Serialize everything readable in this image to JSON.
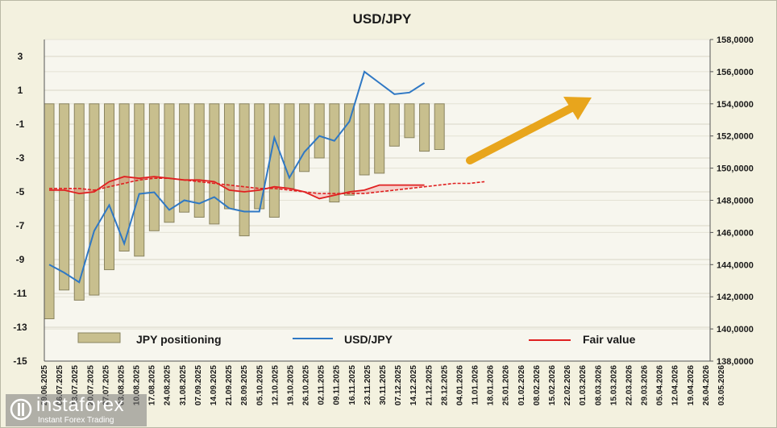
{
  "chart_data": {
    "type": "bar+line",
    "title": "USD/JPY",
    "left_axis": {
      "ticks": [
        3,
        1,
        -1,
        -3,
        -5,
        -7,
        -9,
        -11,
        -13,
        -15
      ],
      "range": [
        -15,
        4
      ]
    },
    "right_axis": {
      "ticks": [
        "158,0000",
        "156,0000",
        "154,0000",
        "152,0000",
        "150,0000",
        "148,0000",
        "146,0000",
        "144,0000",
        "142,0000",
        "140,0000",
        "138,0000"
      ],
      "range": [
        138,
        158
      ]
    },
    "x_labels": [
      "29.06.2025",
      "06.07.2025",
      "13.07.2025",
      "20.07.2025",
      "27.07.2025",
      "03.08.2025",
      "10.08.2025",
      "17.08.2025",
      "24.08.2025",
      "31.08.2025",
      "07.09.2025",
      "14.09.2025",
      "21.09.2025",
      "28.09.2025",
      "05.10.2025",
      "12.10.2025",
      "19.10.2025",
      "26.10.2025",
      "02.11.2025",
      "09.11.2025",
      "16.11.2025",
      "23.11.2025",
      "30.11.2025",
      "07.12.2025",
      "14.12.2025",
      "21.12.2025",
      "28.12.2025",
      "04.01.2026",
      "11.01.2026",
      "18.01.2026",
      "25.01.2026",
      "01.02.2026",
      "08.02.2026",
      "15.02.2026",
      "22.02.2026",
      "01.03.2026",
      "08.03.2026",
      "15.03.2026",
      "22.03.2026",
      "29.03.2026",
      "05.04.2026",
      "12.04.2026",
      "19.04.2026",
      "26.04.2026",
      "03.05.2026"
    ],
    "series": [
      {
        "name": "JPY positioning",
        "kind": "bar",
        "axis": "left",
        "color": "#c8bf8e",
        "values": [
          -12.5,
          -10.8,
          -11.4,
          -11.1,
          -9.6,
          -8.5,
          -8.8,
          -7.3,
          -6.8,
          -6.2,
          -6.5,
          -6.9,
          -6.0,
          -7.6,
          -6.0,
          -6.5,
          -4.8,
          -3.8,
          -3.0,
          -5.6,
          -5.2,
          -4.0,
          -3.9,
          -2.3,
          -1.8,
          -2.6,
          -2.5
        ]
      },
      {
        "name": "USD/JPY",
        "kind": "line",
        "axis": "right",
        "color": "#2f78c4",
        "values": [
          144.0,
          143.5,
          142.9,
          146.1,
          147.7,
          145.3,
          148.4,
          148.5,
          147.4,
          148.0,
          147.8,
          148.2,
          147.5,
          147.3,
          147.3,
          151.9,
          149.4,
          151.0,
          152.0,
          151.7,
          152.9,
          156.0,
          155.3,
          154.6,
          154.7,
          155.3
        ]
      },
      {
        "name": "Fair value",
        "kind": "line",
        "axis": "left",
        "color": "#e02020",
        "values": [
          -4.9,
          -4.9,
          -5.1,
          -5.0,
          -4.4,
          -4.1,
          -4.2,
          -4.1,
          -4.2,
          -4.3,
          -4.3,
          -4.4,
          -4.9,
          -5.0,
          -4.9,
          -4.7,
          -4.8,
          -5.0,
          -5.4,
          -5.2,
          -5.0,
          -4.9,
          -4.6,
          -4.6,
          -4.6,
          -4.6
        ]
      },
      {
        "name": "Fair value trend",
        "kind": "dashed-line",
        "axis": "left",
        "color": "#e02020",
        "values": [
          -4.8,
          -4.8,
          -4.8,
          -4.9,
          -4.7,
          -4.5,
          -4.3,
          -4.2,
          -4.2,
          -4.3,
          -4.4,
          -4.5,
          -4.6,
          -4.7,
          -4.8,
          -4.8,
          -4.9,
          -5.0,
          -5.1,
          -5.1,
          -5.1,
          -5.1,
          -5.0,
          -4.9,
          -4.8,
          -4.7,
          -4.6,
          -4.5,
          -4.5,
          -4.4
        ]
      }
    ],
    "legend": {
      "placement": "bottom-inside",
      "items": [
        {
          "label": "JPY positioning",
          "kind": "bar",
          "color": "#c8bf8e"
        },
        {
          "label": "USD/JPY",
          "kind": "line",
          "color": "#2f78c4"
        },
        {
          "label": "Fair value",
          "kind": "line",
          "color": "#e02020"
        }
      ]
    },
    "arrow": {
      "direction": "up-right",
      "color": "#e8a51c"
    },
    "grid": true
  },
  "watermark": {
    "name": "instaforex",
    "tagline": "Instant Forex Trading"
  }
}
